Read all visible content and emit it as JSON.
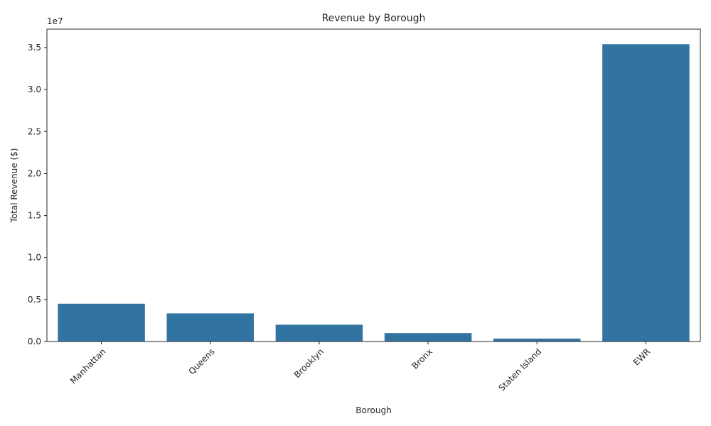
{
  "chart_data": {
    "type": "bar",
    "title": "Revenue by Borough",
    "xlabel": "Borough",
    "ylabel": "Total Revenue ($)",
    "y_offset_text": "1e7",
    "categories": [
      "Manhattan",
      "Queens",
      "Brooklyn",
      "Bronx",
      "Staten Island",
      "EWR"
    ],
    "values": [
      4500000,
      3350000,
      2000000,
      1000000,
      350000,
      35400000
    ],
    "ylim": [
      0,
      37200000
    ],
    "yticks": [
      0,
      5000000,
      10000000,
      15000000,
      20000000,
      25000000,
      30000000,
      35000000
    ],
    "ytick_labels": [
      "0.0",
      "0.5",
      "1.0",
      "1.5",
      "2.0",
      "2.5",
      "3.0",
      "3.5"
    ],
    "bar_color": "#3274a1",
    "grid": false,
    "xtick_rotation": 45
  }
}
